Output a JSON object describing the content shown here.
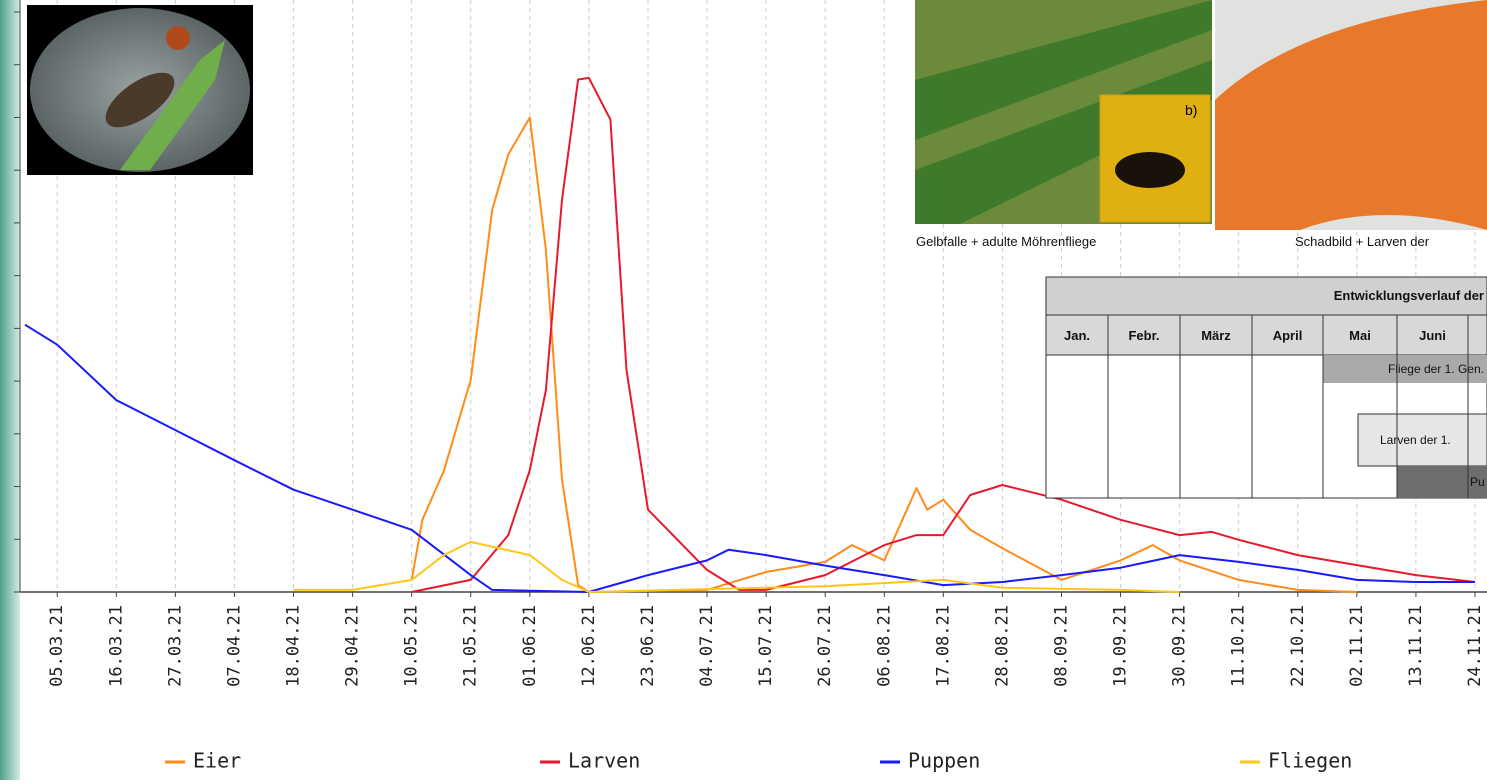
{
  "chart_data": {
    "type": "line",
    "xticks": [
      "05.03.21",
      "16.03.21",
      "27.03.21",
      "07.04.21",
      "18.04.21",
      "29.04.21",
      "10.05.21",
      "21.05.21",
      "01.06.21",
      "12.06.21",
      "23.06.21",
      "04.07.21",
      "15.07.21",
      "26.07.21",
      "06.08.21",
      "17.08.21",
      "28.08.21",
      "08.09.21",
      "19.09.21",
      "30.09.21",
      "11.10.21",
      "22.10.21",
      "02.11.21",
      "13.11.21",
      "24.11.21"
    ],
    "xlim": [
      "27.02.21",
      "24.11.21"
    ],
    "ylim": [
      0,
      110
    ],
    "yticks": [
      0,
      10,
      20,
      30,
      40,
      50,
      60,
      70,
      80,
      90,
      100,
      110
    ],
    "legend": "bottom",
    "series": [
      {
        "name": "Eier",
        "color": "#ff8c1a",
        "x": [
          "10.05.21",
          "12.05.21",
          "16.05.21",
          "21.05.21",
          "25.05.21",
          "28.05.21",
          "01.06.21",
          "04.06.21",
          "07.06.21",
          "10.06.21",
          "12.06.21",
          "04.07.21",
          "15.07.21",
          "26.07.21",
          "31.07.21",
          "06.08.21",
          "12.08.21",
          "14.08.21",
          "17.08.21",
          "22.08.21",
          "28.08.21",
          "08.09.21",
          "19.09.21",
          "25.09.21",
          "30.09.21",
          "11.10.21",
          "22.10.21",
          "02.11.21"
        ],
        "values": [
          2.3,
          13.7,
          23,
          40.2,
          72.5,
          83,
          90,
          64.9,
          21.3,
          1.3,
          0,
          0.4,
          3.8,
          5.7,
          8.9,
          6,
          19.7,
          15.6,
          17.5,
          11.8,
          8.3,
          2.3,
          6,
          8.9,
          6,
          2.3,
          0.4,
          0
        ]
      },
      {
        "name": "Larven",
        "color": "#e8192c",
        "x": [
          "10.05.21",
          "21.05.21",
          "28.05.21",
          "01.06.21",
          "04.06.21",
          "07.06.21",
          "10.06.21",
          "12.06.21",
          "16.06.21",
          "19.06.21",
          "23.06.21",
          "04.07.21",
          "10.07.21",
          "15.07.21",
          "26.07.21",
          "06.08.21",
          "12.08.21",
          "17.08.21",
          "22.08.21",
          "28.08.21",
          "08.09.21",
          "19.09.21",
          "30.09.21",
          "06.10.21",
          "11.10.21",
          "22.10.21",
          "02.11.21",
          "13.11.21",
          "24.11.21"
        ],
        "values": [
          0,
          2.3,
          10.8,
          23.1,
          38.3,
          74.4,
          97.2,
          97.5,
          89.6,
          42.1,
          15.6,
          4.2,
          0.4,
          0.4,
          3.2,
          8.9,
          10.8,
          10.8,
          18.4,
          20.3,
          17.5,
          13.7,
          10.8,
          11.4,
          9.9,
          7,
          5.1,
          3.2,
          1.9
        ]
      },
      {
        "name": "Puppen",
        "color": "#1a1aff",
        "x": [
          "27.02.21",
          "05.03.21",
          "16.03.21",
          "27.03.21",
          "07.04.21",
          "18.04.21",
          "29.04.21",
          "10.05.21",
          "21.05.21",
          "25.05.21",
          "12.06.21",
          "23.06.21",
          "04.07.21",
          "08.07.21",
          "15.07.21",
          "26.07.21",
          "06.08.21",
          "17.08.21",
          "28.08.21",
          "08.09.21",
          "19.09.21",
          "30.09.21",
          "11.10.21",
          "22.10.21",
          "02.11.21",
          "13.11.21",
          "24.11.21"
        ],
        "values": [
          50.7,
          46.9,
          36.4,
          30.7,
          25,
          19.4,
          15.6,
          11.8,
          3.2,
          0.4,
          0,
          3.2,
          6,
          8,
          7,
          5,
          3.2,
          1.3,
          1.9,
          3.2,
          4.6,
          7,
          5.7,
          4.2,
          2.3,
          1.9,
          1.9
        ]
      },
      {
        "name": "Fliegen",
        "color": "#ffc61a",
        "x": [
          "18.04.21",
          "29.04.21",
          "10.05.21",
          "16.05.21",
          "21.05.21",
          "01.06.21",
          "07.06.21",
          "12.06.21",
          "26.07.21",
          "17.08.21",
          "28.08.21",
          "19.09.21",
          "30.09.21"
        ],
        "values": [
          0.4,
          0.4,
          2.3,
          7,
          9.5,
          7,
          2.3,
          0,
          1.1,
          2.3,
          0.8,
          0.4,
          0
        ]
      }
    ]
  },
  "overlay": {
    "photo_caption_a": "Gelbfalle + adulte Möhrenfliege",
    "photo_caption_b": "Schadbild + Larven der",
    "inset_label": "b)",
    "table": {
      "title": "Entwicklungsverlauf der",
      "months": [
        "Jan.",
        "Febr.",
        "März",
        "April",
        "Mai",
        "Juni"
      ],
      "bars": [
        "Fliege der 1. Gen.",
        "Larven der 1.",
        "Pu"
      ]
    }
  }
}
